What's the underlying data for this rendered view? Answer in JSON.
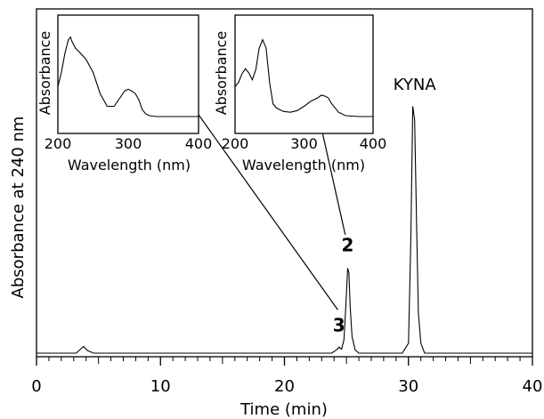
{
  "chart_data": [
    {
      "type": "line",
      "xlabel": "Time (min)",
      "ylabel": "Absorbance at 240 nm",
      "xlim": [
        0,
        40
      ],
      "ylim": [
        0,
        1.0
      ],
      "x_ticks": [
        0,
        10,
        20,
        30,
        40
      ],
      "x_tick_labels": [
        "0",
        "10",
        "20",
        "30",
        "40"
      ],
      "y_ticks_labeled": false,
      "grid": false,
      "series": [
        {
          "x": [
            0,
            3.2,
            3.55,
            3.8,
            4.1,
            4.6,
            10,
            20,
            23.8,
            24.2,
            24.4,
            24.6,
            24.8,
            24.95,
            25.1,
            25.2,
            25.3,
            25.45,
            25.7,
            26.0,
            27,
            29.5,
            30.0,
            30.2,
            30.35,
            30.5,
            30.65,
            30.8,
            31.0,
            31.3,
            32,
            35,
            40
          ],
          "y": [
            0.0,
            0.0,
            0.012,
            0.02,
            0.008,
            0.0,
            0.0,
            0.0,
            0.0,
            0.01,
            0.018,
            0.012,
            0.04,
            0.14,
            0.255,
            0.24,
            0.14,
            0.05,
            0.01,
            0.0,
            0.0,
            0.0,
            0.03,
            0.35,
            0.74,
            0.7,
            0.4,
            0.12,
            0.03,
            0.0,
            0.0,
            0.0,
            0.0
          ]
        }
      ],
      "annotations": [
        {
          "text": "KYNA",
          "x": 30.5,
          "y": 0.79
        },
        {
          "text": "2",
          "x": 25.1,
          "y": 0.305
        },
        {
          "text": "3",
          "x": 24.4,
          "y": 0.065
        }
      ],
      "arrows": [
        {
          "from": [
            24.3,
            0.13
          ],
          "to": [
            12.2,
            0.76
          ]
        },
        {
          "from": [
            24.9,
            0.355
          ],
          "to": [
            22.5,
            0.755
          ]
        }
      ]
    },
    {
      "type": "line",
      "xlabel": "Wavelength (nm)",
      "ylabel": "Absorbance",
      "xlim": [
        200,
        400
      ],
      "ylim": [
        0,
        1.0
      ],
      "x_ticks": [
        200,
        300,
        400
      ],
      "x_tick_labels": [
        "200",
        "300",
        "400"
      ],
      "series": [
        {
          "x": [
            200,
            205,
            210,
            215,
            218,
            220,
            225,
            230,
            240,
            250,
            260,
            270,
            280,
            290,
            295,
            300,
            305,
            310,
            315,
            320,
            325,
            330,
            340,
            350,
            360,
            380,
            400
          ],
          "y": [
            0.35,
            0.52,
            0.74,
            0.9,
            0.93,
            0.88,
            0.8,
            0.76,
            0.67,
            0.52,
            0.27,
            0.12,
            0.12,
            0.24,
            0.3,
            0.32,
            0.3,
            0.27,
            0.2,
            0.08,
            0.03,
            0.01,
            0.0,
            0.0,
            0.0,
            0.0,
            0.0
          ]
        }
      ]
    },
    {
      "type": "line",
      "xlabel": "Wavelength (nm)",
      "ylabel": "Absorbance",
      "xlim": [
        200,
        400
      ],
      "ylim": [
        0,
        1.0
      ],
      "x_ticks": [
        200,
        300,
        400
      ],
      "x_tick_labels": [
        "200",
        "300",
        "400"
      ],
      "series": [
        {
          "x": [
            200,
            205,
            210,
            215,
            220,
            225,
            230,
            235,
            240,
            245,
            250,
            255,
            260,
            270,
            280,
            290,
            300,
            310,
            320,
            325,
            330,
            335,
            340,
            350,
            360,
            380,
            400
          ],
          "y": [
            0.35,
            0.4,
            0.5,
            0.56,
            0.51,
            0.43,
            0.55,
            0.8,
            0.9,
            0.8,
            0.4,
            0.15,
            0.1,
            0.06,
            0.05,
            0.07,
            0.12,
            0.18,
            0.22,
            0.25,
            0.24,
            0.22,
            0.15,
            0.05,
            0.01,
            0.0,
            0.0
          ]
        }
      ]
    }
  ]
}
